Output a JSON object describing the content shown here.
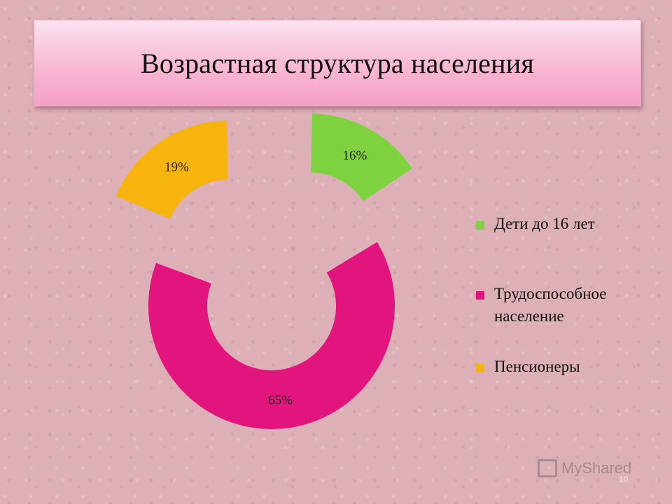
{
  "title": "Возрастная структура населения",
  "chart_data": {
    "type": "pie",
    "style": "exploded-doughnut",
    "categories": [
      "Дети до 16 лет",
      "Трудоспособное население",
      "Пенсионеры"
    ],
    "values": [
      16,
      65,
      19
    ],
    "value_labels": [
      "16%",
      "65%",
      "19%"
    ],
    "colors": [
      "#7ed23f",
      "#e2157f",
      "#f7b30e"
    ],
    "legend_position": "right"
  },
  "watermark": "MyShared",
  "slide_number": "10"
}
